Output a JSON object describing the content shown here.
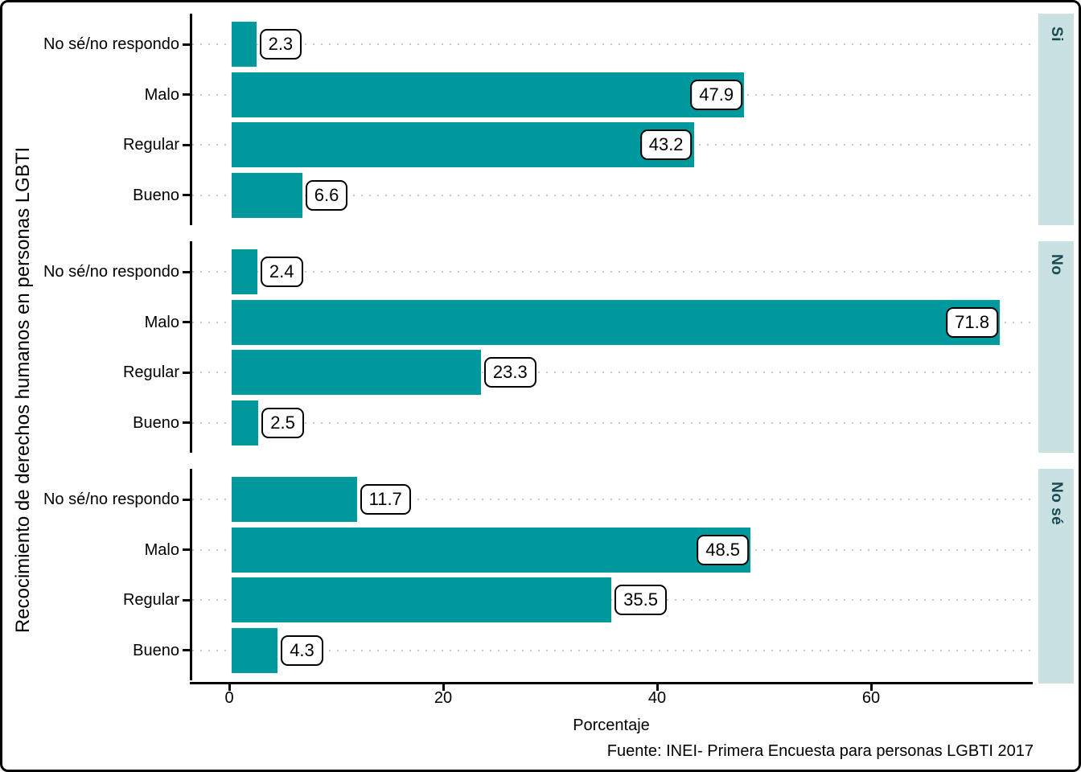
{
  "chart_data": {
    "type": "bar",
    "orientation": "horizontal",
    "xlabel": "Porcentaje",
    "ylabel": "Recocimiento de derechos humanos en personas LGBTI",
    "x_ticks": [
      0,
      20,
      40,
      60
    ],
    "xlim": [
      0,
      75
    ],
    "grid": "dotted horizontal per category",
    "legend": false,
    "categories": [
      "No sé/no respondo",
      "Malo",
      "Regular",
      "Bueno"
    ],
    "facets": [
      {
        "label": "Si",
        "values": [
          2.3,
          47.9,
          43.2,
          6.6
        ]
      },
      {
        "label": "No",
        "values": [
          2.4,
          71.8,
          23.3,
          2.5
        ]
      },
      {
        "label": "No sé",
        "values": [
          11.7,
          48.5,
          35.5,
          4.3
        ]
      }
    ],
    "source": "Fuente: INEI- Primera Encuesta para personas LGBTI 2017",
    "bar_color": "#009A9E",
    "strip_bg": "#C9E2E1",
    "strip_text_color": "#1B4A52",
    "gridline_color": "#C8C8C8",
    "axis_color": "#000000"
  }
}
